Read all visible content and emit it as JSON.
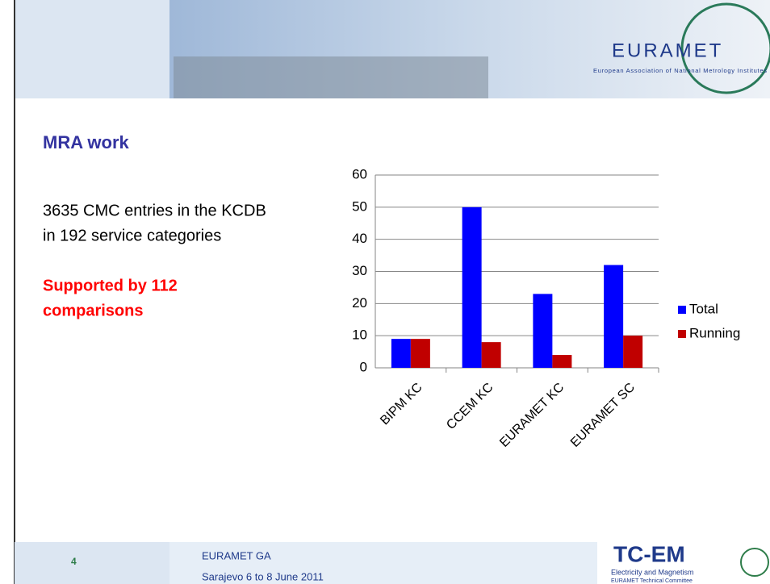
{
  "header": {
    "logo": "EURAMET",
    "logo_subtitle": "European Association of National Metrology Institutes"
  },
  "slide": {
    "title": "MRA work",
    "lines": [
      "3635 CMC entries in the KCDB",
      "in 192 service categories"
    ],
    "highlight": [
      "Supported by 112",
      "comparisons"
    ]
  },
  "chart_data": {
    "type": "bar",
    "categories": [
      "BIPM KC",
      "CCEM KC",
      "EURAMET KC",
      "EURAMET SC"
    ],
    "series": [
      {
        "name": "Total",
        "color": "#0000ff",
        "values": [
          9,
          50,
          23,
          32
        ]
      },
      {
        "name": "Running",
        "color": "#c00000",
        "values": [
          9,
          8,
          4,
          10
        ]
      }
    ],
    "ylim": [
      0,
      60
    ],
    "yticks": [
      0,
      10,
      20,
      30,
      40,
      50,
      60
    ],
    "grid": true,
    "legend": "right"
  },
  "footer": {
    "page": "4",
    "event": "EURAMET GA",
    "date": "Sarajevo 6 to 8 June 2011",
    "committee": "TC-EM",
    "committee_name": "Electricity and Magnetism",
    "committee_org": "EURAMET Technical Committee"
  }
}
